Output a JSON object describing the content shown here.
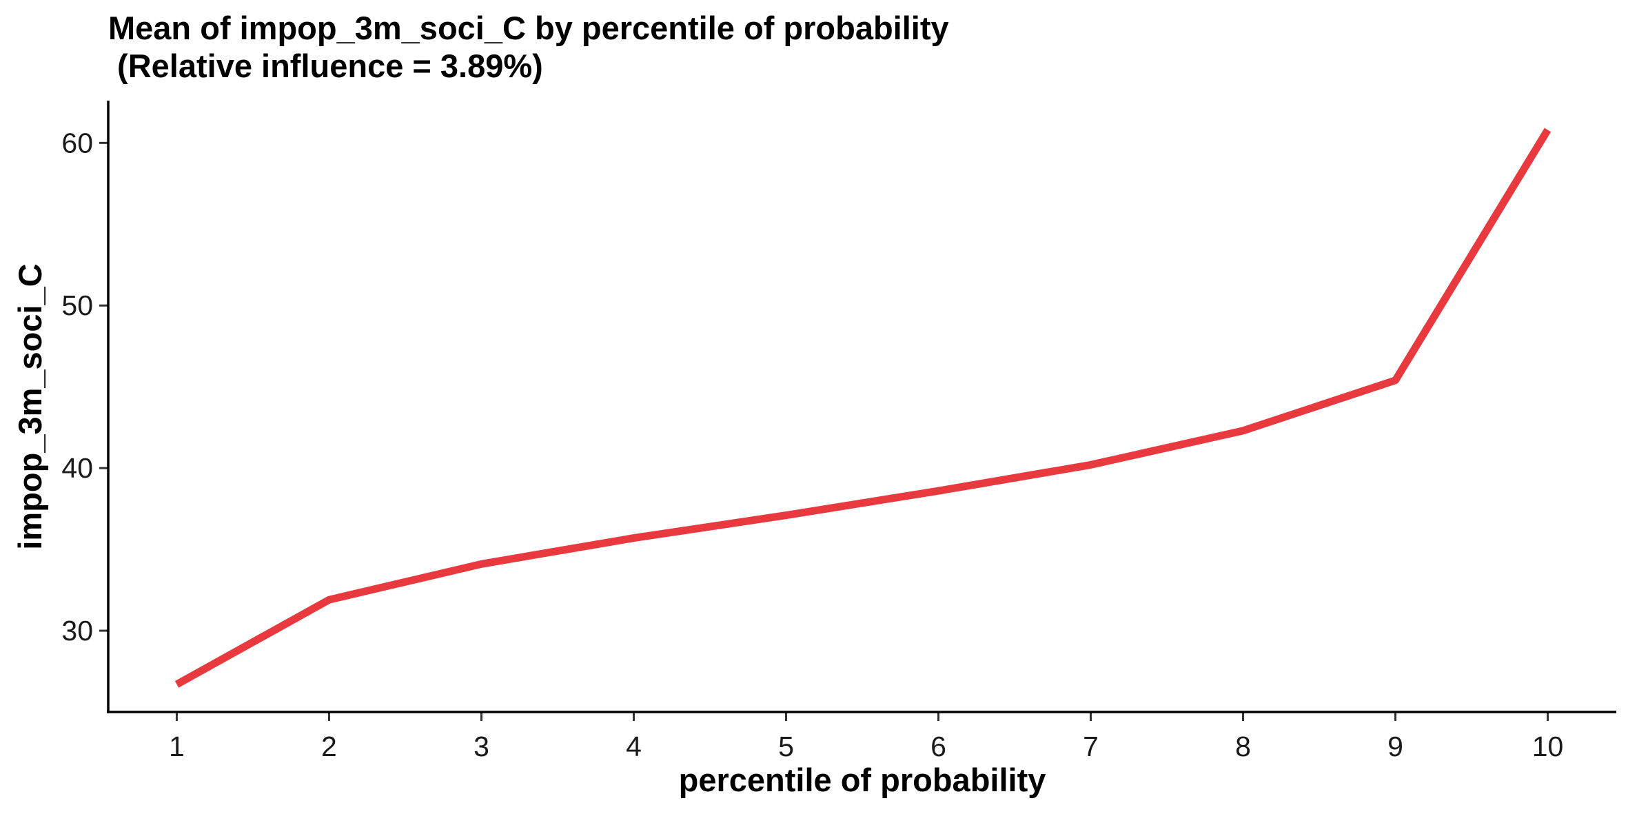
{
  "chart_data": {
    "type": "line",
    "title_line1": "Mean of impop_3m_soci_C by percentile of probability",
    "title_line2": " (Relative influence = 3.89%)",
    "xlabel": "percentile of probability",
    "ylabel": "impop_3m_soci_C",
    "x": [
      1,
      2,
      3,
      4,
      5,
      6,
      7,
      8,
      9,
      10
    ],
    "y": [
      26.7,
      31.9,
      34.1,
      35.7,
      37.1,
      38.6,
      40.2,
      42.3,
      45.4,
      60.8
    ],
    "x_ticks": [
      "1",
      "2",
      "3",
      "4",
      "5",
      "6",
      "7",
      "8",
      "9",
      "10"
    ],
    "y_ticks": [
      "30",
      "40",
      "50",
      "60"
    ],
    "y_tick_values": [
      30,
      40,
      50,
      60
    ],
    "xlim": [
      0.55,
      10.45
    ],
    "ylim": [
      25.0,
      62.6
    ],
    "line_color": "#E8393F",
    "grid": false,
    "legend": "none"
  }
}
